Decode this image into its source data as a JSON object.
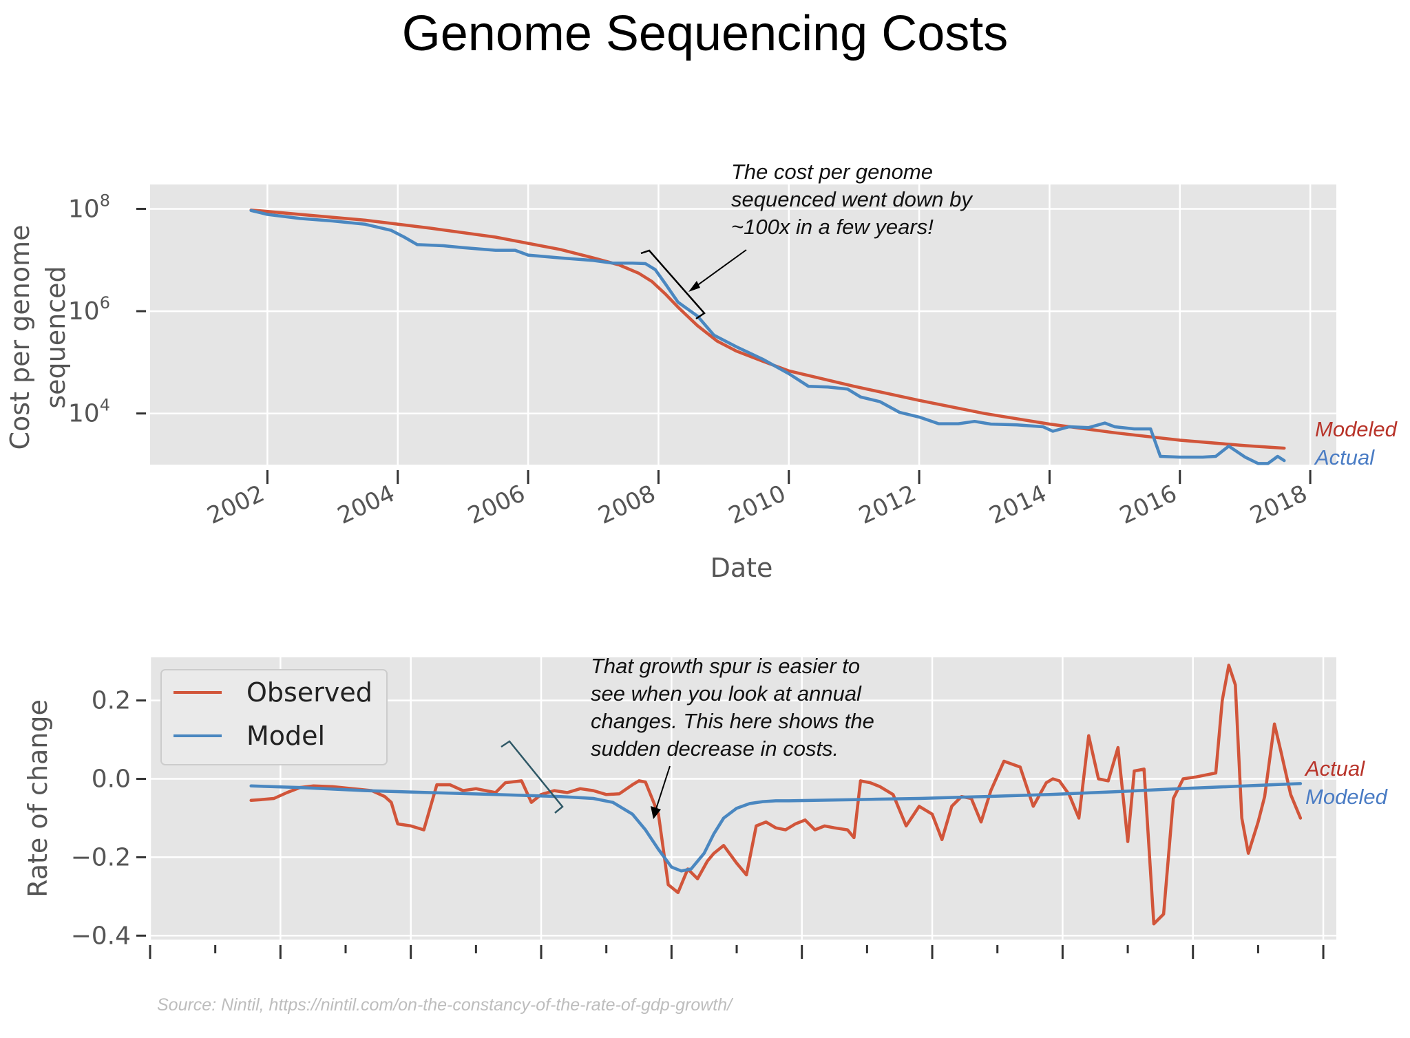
{
  "title": "Genome Sequencing Costs",
  "source": "Source: Nintil, https://nintil.com/on-the-constancy-of-the-rate-of-gdp-growth/",
  "colors": {
    "red": "#d1553a",
    "blue": "#4a87c0",
    "panel": "#e5e5e5",
    "grid": "#ffffff"
  },
  "chart_data": [
    {
      "type": "line",
      "scale_y": "log",
      "xlabel": "Date",
      "ylabel": "Cost per genome sequenced",
      "ylim": [
        1000,
        300000000
      ],
      "xlim": [
        2000.2,
        2018.4
      ],
      "grid": true,
      "xticks": [
        2002,
        2004,
        2006,
        2008,
        2010,
        2012,
        2014,
        2016,
        2018
      ],
      "yticks": [
        {
          "base": "10",
          "exp": "8",
          "value": 100000000
        },
        {
          "base": "10",
          "exp": "6",
          "value": 1000000
        },
        {
          "base": "10",
          "exp": "4",
          "value": 10000
        }
      ],
      "annotation": "The cost per genome sequenced went down by ~100x in a few years!",
      "annotation_lines": [
        "The cost per genome",
        "sequenced went down by",
        "~100x in a few years!"
      ],
      "series": [
        {
          "name": "Modeled",
          "color": "#d1553a",
          "x": [
            2001.75,
            2002.5,
            2003.5,
            2004.5,
            2005.5,
            2006.5,
            2007.0,
            2007.4,
            2007.7,
            2007.9,
            2008.1,
            2008.3,
            2008.6,
            2008.9,
            2009.2,
            2009.6,
            2010.0,
            2011.0,
            2012.0,
            2013.0,
            2014.0,
            2015.0,
            2016.0,
            2017.0,
            2017.6
          ],
          "y": [
            95000000,
            78000000,
            60000000,
            42000000,
            28000000,
            16000000,
            11000000,
            8000000,
            5500000,
            3800000,
            2200000,
            1200000,
            520000,
            260000,
            165000,
            105000,
            68000,
            34000,
            18000,
            10000,
            6200,
            4200,
            3000,
            2350,
            2100
          ]
        },
        {
          "name": "Actual",
          "color": "#4a87c0",
          "x": [
            2001.75,
            2002.0,
            2002.5,
            2003.0,
            2003.5,
            2003.9,
            2004.1,
            2004.3,
            2004.7,
            2005.0,
            2005.5,
            2005.8,
            2006.0,
            2006.5,
            2007.0,
            2007.3,
            2007.6,
            2007.8,
            2007.95,
            2008.1,
            2008.3,
            2008.6,
            2008.85,
            2009.2,
            2009.6,
            2010.0,
            2010.3,
            2010.6,
            2010.9,
            2011.1,
            2011.4,
            2011.7,
            2012.0,
            2012.3,
            2012.6,
            2012.85,
            2013.1,
            2013.5,
            2013.9,
            2014.05,
            2014.3,
            2014.6,
            2014.85,
            2015.0,
            2015.3,
            2015.55,
            2015.7,
            2016.0,
            2016.35,
            2016.55,
            2016.75,
            2017.0,
            2017.2,
            2017.35,
            2017.5,
            2017.6
          ],
          "y": [
            93000000,
            78000000,
            65000000,
            58000000,
            50000000,
            38000000,
            28000000,
            20000000,
            19000000,
            17500000,
            15500000,
            15500000,
            12500000,
            11000000,
            9800000,
            8700000,
            8700000,
            8500000,
            6500000,
            3500000,
            1500000,
            800000,
            340000,
            200000,
            115000,
            60000,
            34000,
            33000,
            30000,
            21000,
            17000,
            10500,
            8500,
            6300,
            6300,
            7000,
            6200,
            6000,
            5500,
            4500,
            5500,
            5300,
            6500,
            5500,
            5000,
            5000,
            1450,
            1400,
            1400,
            1450,
            2300,
            1400,
            1050,
            1050,
            1450,
            1200
          ]
        }
      ]
    },
    {
      "type": "line",
      "xlabel": "",
      "ylabel": "Rate of change",
      "ylim": [
        -0.41,
        0.31
      ],
      "xlim": [
        2000.2,
        2018.4
      ],
      "grid": true,
      "legend_position": "upper-left",
      "yticks": [
        0.2,
        0.0,
        -0.2,
        -0.4
      ],
      "ytick_labels": [
        "0.2",
        "0.0",
        "−0.2",
        "−0.4"
      ],
      "xticks_major": [
        2000.2,
        2002.2,
        2004.2,
        2006.2,
        2008.2,
        2010.2,
        2012.2,
        2014.2,
        2016.2,
        2018.2
      ],
      "xticks_minor": [
        2001.2,
        2003.2,
        2005.2,
        2007.2,
        2009.2,
        2011.2,
        2013.2,
        2015.2,
        2017.2,
        2019.2
      ],
      "annotation": "That growth spur is easier to see when you look at annual changes. This here shows the sudden decrease in costs.",
      "annotation_lines": [
        "That growth spur is easier to",
        "see when you look at annual",
        "changes. This here shows the",
        "sudden decrease in costs."
      ],
      "series": [
        {
          "name": "Observed",
          "color": "#d1553a",
          "x": [
            2001.75,
            2001.9,
            2002.1,
            2002.3,
            2002.5,
            2002.7,
            2003.0,
            2003.3,
            2003.6,
            2003.8,
            2003.9,
            2004.0,
            2004.2,
            2004.4,
            2004.6,
            2004.8,
            2005.0,
            2005.2,
            2005.5,
            2005.65,
            2005.9,
            2006.05,
            2006.2,
            2006.4,
            2006.6,
            2006.8,
            2007.0,
            2007.2,
            2007.4,
            2007.6,
            2007.7,
            2007.8,
            2008.0,
            2008.15,
            2008.3,
            2008.45,
            2008.6,
            2008.75,
            2008.85,
            2009.0,
            2009.2,
            2009.35,
            2009.5,
            2009.65,
            2009.8,
            2009.95,
            2010.1,
            2010.25,
            2010.4,
            2010.55,
            2010.7,
            2010.9,
            2011.0,
            2011.1,
            2011.25,
            2011.4,
            2011.6,
            2011.8,
            2012.0,
            2012.2,
            2012.35,
            2012.5,
            2012.65,
            2012.8,
            2012.95,
            2013.1,
            2013.3,
            2013.55,
            2013.75,
            2013.95,
            2014.05,
            2014.15,
            2014.3,
            2014.45,
            2014.6,
            2014.75,
            2014.9,
            2015.05,
            2015.2,
            2015.3,
            2015.45,
            2015.6,
            2015.75,
            2015.9,
            2016.05,
            2016.25,
            2016.4,
            2016.55,
            2016.65,
            2016.75,
            2016.85,
            2016.95,
            2017.05,
            2017.2,
            2017.3,
            2017.45,
            2017.55,
            2017.7,
            2017.85
          ],
          "y": [
            -0.055,
            -0.053,
            -0.05,
            -0.035,
            -0.022,
            -0.018,
            -0.02,
            -0.025,
            -0.03,
            -0.045,
            -0.06,
            -0.115,
            -0.12,
            -0.13,
            -0.015,
            -0.015,
            -0.03,
            -0.025,
            -0.035,
            -0.01,
            -0.005,
            -0.06,
            -0.04,
            -0.03,
            -0.035,
            -0.025,
            -0.03,
            -0.04,
            -0.038,
            -0.015,
            -0.005,
            -0.008,
            -0.09,
            -0.27,
            -0.29,
            -0.23,
            -0.255,
            -0.21,
            -0.19,
            -0.17,
            -0.215,
            -0.245,
            -0.12,
            -0.11,
            -0.125,
            -0.13,
            -0.115,
            -0.105,
            -0.13,
            -0.12,
            -0.125,
            -0.13,
            -0.15,
            -0.005,
            -0.01,
            -0.02,
            -0.04,
            -0.12,
            -0.07,
            -0.09,
            -0.155,
            -0.07,
            -0.045,
            -0.05,
            -0.11,
            -0.03,
            0.045,
            0.03,
            -0.07,
            -0.01,
            0.0,
            -0.005,
            -0.04,
            -0.1,
            0.11,
            0.0,
            -0.005,
            0.08,
            -0.16,
            0.02,
            0.025,
            -0.37,
            -0.345,
            -0.05,
            0.0,
            0.005,
            0.01,
            0.015,
            0.2,
            0.29,
            0.24,
            -0.1,
            -0.19,
            -0.11,
            -0.045,
            0.14,
            0.07,
            -0.04,
            -0.1
          ]
        },
        {
          "name": "Model",
          "color": "#4a87c0",
          "x": [
            2001.75,
            2002.5,
            2003.5,
            2004.5,
            2005.5,
            2006.5,
            2007.0,
            2007.3,
            2007.6,
            2007.8,
            2008.0,
            2008.2,
            2008.35,
            2008.5,
            2008.7,
            2008.85,
            2009.0,
            2009.2,
            2009.4,
            2009.6,
            2009.8,
            2010.0,
            2011.0,
            2012.0,
            2013.0,
            2014.0,
            2015.0,
            2016.0,
            2017.0,
            2017.85
          ],
          "y": [
            -0.018,
            -0.022,
            -0.03,
            -0.035,
            -0.04,
            -0.045,
            -0.05,
            -0.06,
            -0.09,
            -0.13,
            -0.18,
            -0.225,
            -0.235,
            -0.23,
            -0.19,
            -0.14,
            -0.1,
            -0.075,
            -0.063,
            -0.058,
            -0.056,
            -0.056,
            -0.053,
            -0.05,
            -0.045,
            -0.04,
            -0.033,
            -0.025,
            -0.018,
            -0.012
          ]
        }
      ]
    }
  ],
  "side_labels_top": [
    "Modeled",
    "Actual"
  ],
  "side_labels_bottom": [
    "Actual",
    "Modeled"
  ]
}
